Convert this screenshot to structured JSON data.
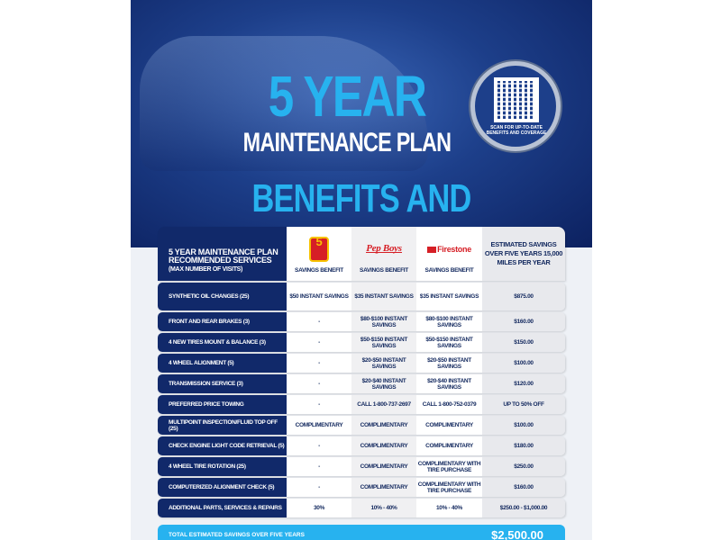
{
  "hero": {
    "title_big": "5 YEAR",
    "title_sub": "MAINTENANCE PLAN",
    "heading": "BENEFITS AND COVERAGE",
    "qr_caption": "SCAN FOR UP-TO-DATE BENEFITS AND COVERAGE"
  },
  "colors": {
    "navy": "#11296a",
    "accent": "#27b2ef",
    "brand_red": "#d61f26"
  },
  "table": {
    "header": {
      "services_title": "5 YEAR MAINTENANCE PLAN RECOMMENDED SERVICES",
      "services_note": "(MAX NUMBER OF VISITS)",
      "providers": [
        {
          "logo": "Take 5",
          "logo_text": "5",
          "label": "SAVINGS BENEFIT"
        },
        {
          "logo": "Pep Boys",
          "label": "SAVINGS BENEFIT"
        },
        {
          "logo": "Firestone Complete Auto Care",
          "logo_text": "Firestone",
          "label": "SAVINGS BENEFIT"
        }
      ],
      "estimate": "ESTIMATED SAVINGS OVER FIVE YEARS 15,000 MILES PER YEAR"
    },
    "rows": [
      [
        "SYNTHETIC OIL CHANGES (25)",
        "$50 INSTANT SAVINGS",
        "$35 INSTANT SAVINGS",
        "$35 INSTANT SAVINGS",
        "$875.00"
      ],
      [
        "FRONT AND REAR BRAKES (3)",
        "-",
        "$80-$100 INSTANT SAVINGS",
        "$80-$100 INSTANT SAVINGS",
        "$160.00"
      ],
      [
        "4 NEW TIRES MOUNT & BALANCE (3)",
        "-",
        "$50-$150 INSTANT SAVINGS",
        "$50-$150 INSTANT SAVINGS",
        "$150.00"
      ],
      [
        "4 WHEEL ALIGNMENT (5)",
        "-",
        "$20-$50 INSTANT SAVINGS",
        "$20-$50 INSTANT SAVINGS",
        "$100.00"
      ],
      [
        "TRANSMISSION SERVICE (3)",
        "-",
        "$20-$40 INSTANT SAVINGS",
        "$20-$40 INSTANT SAVINGS",
        "$120.00"
      ],
      [
        "PREFERRED PRICE TOWING",
        "-",
        "CALL 1-800-737-2697",
        "CALL 1-800-752-0379",
        "UP TO 50% OFF"
      ],
      [
        "MULTIPOINT INSPECTION/FLUID TOP OFF (25)",
        "COMPLIMENTARY",
        "COMPLIMENTARY",
        "COMPLIMENTARY",
        "$100.00"
      ],
      [
        "CHECK ENGINE LIGHT CODE RETRIEVAL (5)",
        "-",
        "COMPLIMENTARY",
        "COMPLIMENTARY",
        "$180.00"
      ],
      [
        "4 WHEEL TIRE ROTATION (25)",
        "-",
        "COMPLIMENTARY",
        "COMPLIMENTARY WITH TIRE PURCHASE",
        "$250.00"
      ],
      [
        "COMPUTERIZED ALIGNMENT CHECK (5)",
        "-",
        "COMPLIMENTARY",
        "COMPLIMENTARY WITH TIRE PURCHASE",
        "$160.00"
      ],
      [
        "ADDITIONAL PARTS, SERVICES & REPAIRS",
        "30%",
        "10% - 40%",
        "10% - 40%",
        "$250.00 - $1,000.00"
      ]
    ],
    "total": {
      "label": "TOTAL ESTIMATED SAVINGS OVER FIVE YEARS",
      "value": "$2,500.00"
    }
  }
}
